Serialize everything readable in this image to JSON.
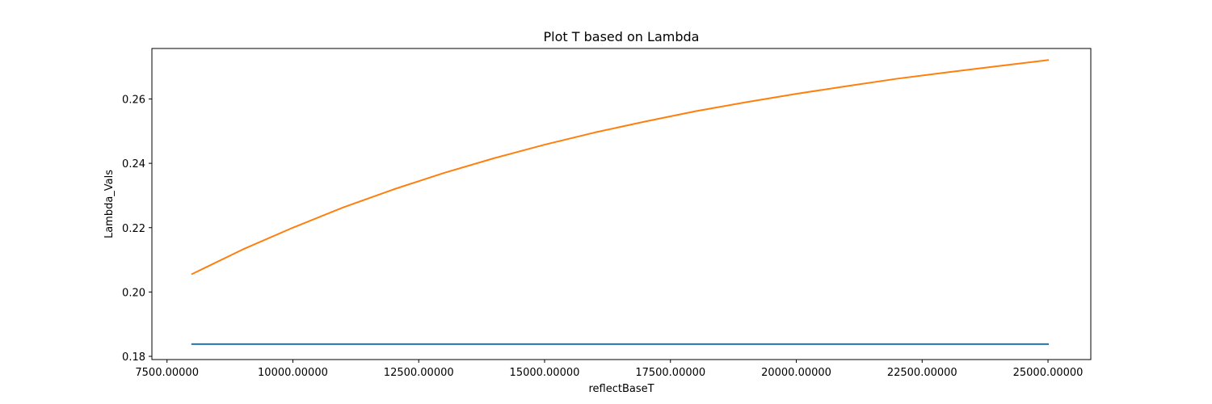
{
  "chart_data": {
    "type": "line",
    "title": "Plot T based on Lambda",
    "xlabel": "reflectBaseT",
    "ylabel": "Lambda_Vals",
    "xlim": [
      7200,
      25850
    ],
    "ylim": [
      0.179,
      0.2757
    ],
    "grid": false,
    "x_ticks": [
      7500,
      10000,
      12500,
      15000,
      17500,
      20000,
      22500,
      25000
    ],
    "x_tick_labels": [
      "7500.00000",
      "10000.00000",
      "12500.00000",
      "15000.00000",
      "17500.00000",
      "20000.00000",
      "22500.00000",
      "25000.00000"
    ],
    "y_ticks": [
      0.18,
      0.2,
      0.22,
      0.24,
      0.26
    ],
    "y_tick_labels": [
      "0.18",
      "0.20",
      "0.22",
      "0.24",
      "0.26"
    ],
    "x": [
      8000,
      9000,
      10000,
      11000,
      12000,
      13000,
      14000,
      15000,
      16000,
      17000,
      18000,
      19000,
      20000,
      21000,
      22000,
      23000,
      24000,
      25000
    ],
    "series": [
      {
        "color": "#1f77b4",
        "values": [
          0.1838,
          0.1838,
          0.1838,
          0.1838,
          0.1838,
          0.1838,
          0.1838,
          0.1838,
          0.1838,
          0.1838,
          0.1838,
          0.1838,
          0.1838,
          0.1838,
          0.1838,
          0.1838,
          0.1838,
          0.1838
        ]
      },
      {
        "color": "#ff7f0e",
        "values": [
          0.2056,
          0.2132,
          0.22,
          0.2263,
          0.2319,
          0.237,
          0.2416,
          0.2458,
          0.2496,
          0.253,
          0.2562,
          0.259,
          0.2616,
          0.264,
          0.2663,
          0.2683,
          0.2702,
          0.2721
        ]
      }
    ]
  }
}
